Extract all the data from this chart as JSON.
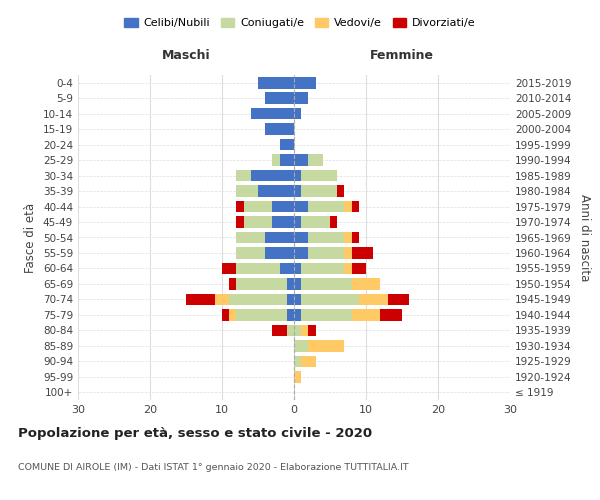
{
  "age_groups": [
    "100+",
    "95-99",
    "90-94",
    "85-89",
    "80-84",
    "75-79",
    "70-74",
    "65-69",
    "60-64",
    "55-59",
    "50-54",
    "45-49",
    "40-44",
    "35-39",
    "30-34",
    "25-29",
    "20-24",
    "15-19",
    "10-14",
    "5-9",
    "0-4"
  ],
  "birth_years": [
    "≤ 1919",
    "1920-1924",
    "1925-1929",
    "1930-1934",
    "1935-1939",
    "1940-1944",
    "1945-1949",
    "1950-1954",
    "1955-1959",
    "1960-1964",
    "1965-1969",
    "1970-1974",
    "1975-1979",
    "1980-1984",
    "1985-1989",
    "1990-1994",
    "1995-1999",
    "2000-2004",
    "2005-2009",
    "2010-2014",
    "2015-2019"
  ],
  "maschi": {
    "celibi": [
      0,
      0,
      0,
      0,
      0,
      1,
      1,
      1,
      2,
      4,
      4,
      3,
      3,
      5,
      6,
      2,
      2,
      4,
      6,
      4,
      5
    ],
    "coniugati": [
      0,
      0,
      0,
      0,
      1,
      7,
      8,
      7,
      6,
      4,
      4,
      4,
      4,
      3,
      2,
      1,
      0,
      0,
      0,
      0,
      0
    ],
    "vedovi": [
      0,
      0,
      0,
      0,
      0,
      1,
      2,
      0,
      0,
      0,
      0,
      0,
      0,
      0,
      0,
      0,
      0,
      0,
      0,
      0,
      0
    ],
    "divorziati": [
      0,
      0,
      0,
      0,
      2,
      1,
      4,
      1,
      2,
      0,
      0,
      1,
      1,
      0,
      0,
      0,
      0,
      0,
      0,
      0,
      0
    ]
  },
  "femmine": {
    "nubili": [
      0,
      0,
      0,
      0,
      0,
      1,
      1,
      1,
      1,
      2,
      2,
      1,
      2,
      1,
      1,
      2,
      0,
      0,
      1,
      2,
      3
    ],
    "coniugate": [
      0,
      0,
      1,
      2,
      1,
      7,
      8,
      7,
      6,
      5,
      5,
      4,
      5,
      5,
      5,
      2,
      0,
      0,
      0,
      0,
      0
    ],
    "vedove": [
      0,
      1,
      2,
      5,
      1,
      4,
      4,
      4,
      1,
      1,
      1,
      0,
      1,
      0,
      0,
      0,
      0,
      0,
      0,
      0,
      0
    ],
    "divorziate": [
      0,
      0,
      0,
      0,
      1,
      3,
      3,
      0,
      2,
      3,
      1,
      1,
      1,
      1,
      0,
      0,
      0,
      0,
      0,
      0,
      0
    ]
  },
  "colors": {
    "celibi_nubili": "#4472c4",
    "coniugati_e": "#c5d9a0",
    "vedovi_e": "#ffc966",
    "divorziati_e": "#cc0000"
  },
  "title": "Popolazione per età, sesso e stato civile - 2020",
  "subtitle": "COMUNE DI AIROLE (IM) - Dati ISTAT 1° gennaio 2020 - Elaborazione TUTTITALIA.IT",
  "xlabel_left": "Maschi",
  "xlabel_right": "Femmine",
  "ylabel_left": "Fasce di età",
  "ylabel_right": "Anni di nascita",
  "xlim": 30,
  "background_color": "#ffffff",
  "grid_color": "#dddddd"
}
